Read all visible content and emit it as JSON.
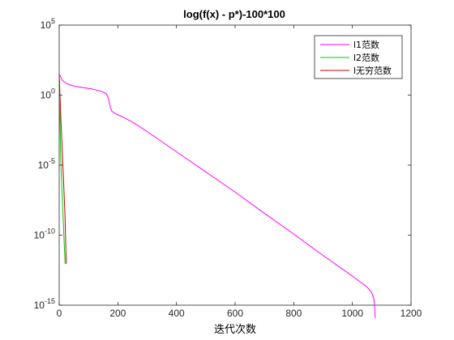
{
  "chart_data": {
    "type": "line",
    "title": "log(f(x) - p*)-100*100",
    "xlabel": "迭代次数",
    "ylabel": "",
    "xlim": [
      0,
      1200
    ],
    "ylim": [
      1e-15,
      100000
    ],
    "y_scale": "log",
    "x_ticks": [
      0,
      200,
      400,
      600,
      800,
      1000,
      1200
    ],
    "y_ticks": [
      {
        "value": 1e-15,
        "base": "10",
        "exponent": "-15"
      },
      {
        "value": 1e-10,
        "base": "10",
        "exponent": "-10"
      },
      {
        "value": 1e-05,
        "base": "10",
        "exponent": "-5"
      },
      {
        "value": 1,
        "base": "10",
        "exponent": "0"
      },
      {
        "value": 100000,
        "base": "10",
        "exponent": "5"
      }
    ],
    "grid": false,
    "legend": "top-right",
    "series": [
      {
        "name": "l1范数",
        "color": "#ff00ff",
        "points": [
          [
            0,
            30
          ],
          [
            3,
            25
          ],
          [
            10,
            12
          ],
          [
            20,
            8
          ],
          [
            30,
            6
          ],
          [
            50,
            4.5
          ],
          [
            80,
            3.5
          ],
          [
            110,
            2.8
          ],
          [
            140,
            2
          ],
          [
            160,
            1.3
          ],
          [
            168,
            0.6
          ],
          [
            175,
            0.12
          ],
          [
            180,
            0.07
          ],
          [
            190,
            0.05
          ],
          [
            220,
            0.025
          ],
          [
            250,
            0.012
          ],
          [
            300,
            0.0025
          ],
          [
            400,
            9e-05
          ],
          [
            500,
            3.3e-06
          ],
          [
            600,
            1.2e-07
          ],
          [
            700,
            3.6e-09
          ],
          [
            800,
            1.2e-10
          ],
          [
            900,
            3.6e-12
          ],
          [
            1000,
            1.2e-13
          ],
          [
            1050,
            2e-14
          ],
          [
            1065,
            8.5e-15
          ],
          [
            1073,
            3.2e-15
          ],
          [
            1076,
            6.5e-16
          ],
          [
            1078,
            1.2e-16
          ]
        ]
      },
      {
        "name": "l2范数",
        "color": "#00cc00",
        "points": [
          [
            0,
            30
          ],
          [
            5,
            5e-05
          ],
          [
            10,
            1e-07
          ],
          [
            15,
            3e-10
          ],
          [
            20,
            9e-13
          ]
        ]
      },
      {
        "name": "l无穷范数",
        "color": "#cc0000",
        "points": [
          [
            0,
            30
          ],
          [
            5,
            0.05
          ],
          [
            10,
            0.0002
          ],
          [
            15,
            7e-07
          ],
          [
            20,
            2e-09
          ],
          [
            24,
            9e-13
          ]
        ]
      }
    ]
  }
}
